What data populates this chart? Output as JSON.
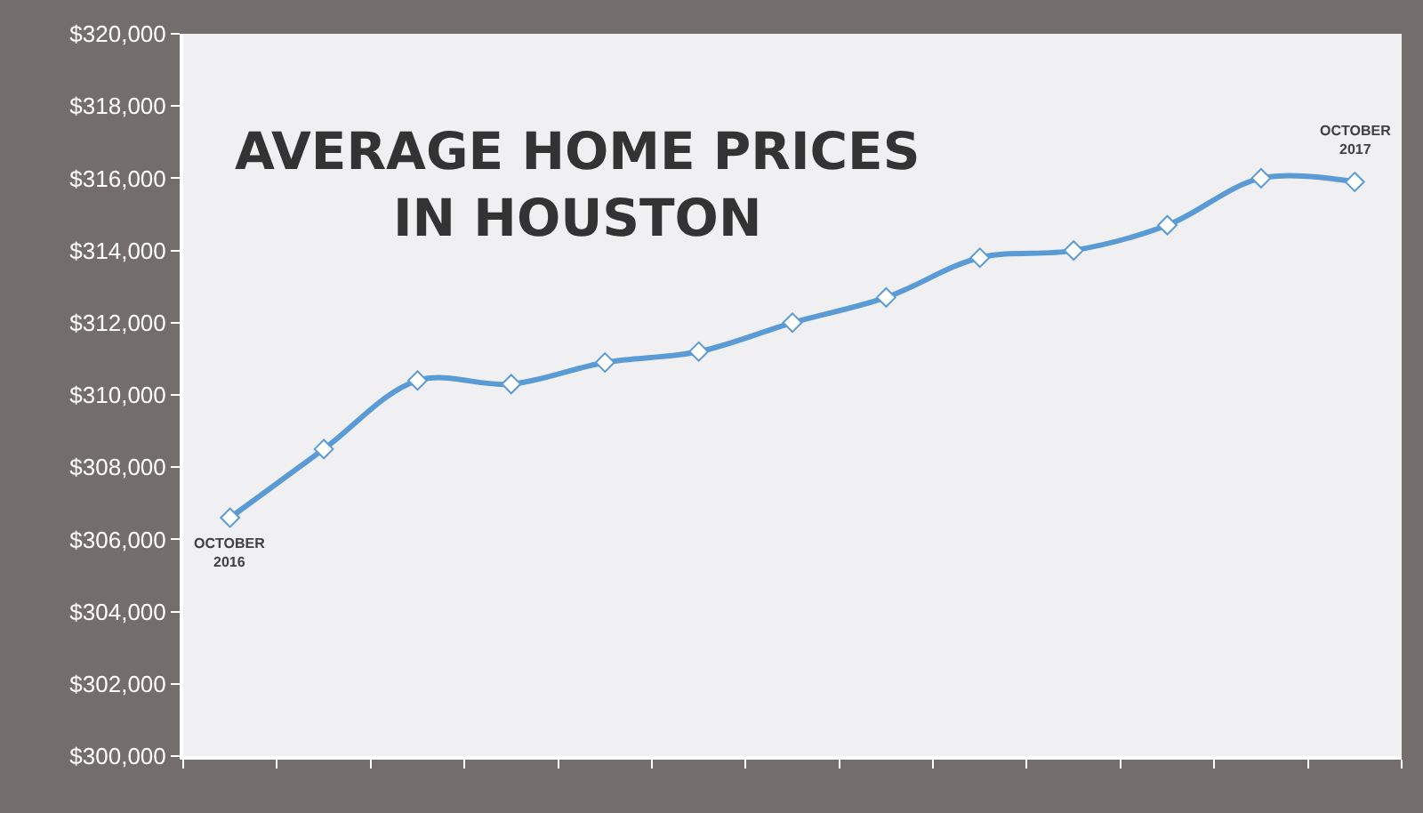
{
  "chart_data": {
    "type": "line",
    "title": "AVERAGE HOME PRICES\nIN HOUSTON",
    "categories": [
      null,
      null,
      null,
      null,
      null,
      null,
      null,
      null,
      null,
      null,
      null,
      null,
      null
    ],
    "series": [
      {
        "color": "#5b9bd5",
        "values": [
          306600,
          308500,
          310400,
          310300,
          310900,
          311200,
          312000,
          312700,
          313800,
          314000,
          314700,
          316000,
          315900
        ]
      }
    ],
    "ylim": [
      300000,
      320000
    ],
    "yticks": [
      {
        "value": 300000,
        "label": "$300,000"
      },
      {
        "value": 302000,
        "label": "$302,000"
      },
      {
        "value": 304000,
        "label": "$304,000"
      },
      {
        "value": 306000,
        "label": "$306,000"
      },
      {
        "value": 308000,
        "label": "$308,000"
      },
      {
        "value": 310000,
        "label": "$310,000"
      },
      {
        "value": 312000,
        "label": "$312,000"
      },
      {
        "value": 314000,
        "label": "$314,000"
      },
      {
        "value": 316000,
        "label": "$316,000"
      },
      {
        "value": 318000,
        "label": "$318,000"
      },
      {
        "value": 320000,
        "label": "$320,000"
      }
    ],
    "annotations": [
      {
        "text": "OCTOBER\n2016",
        "y": 306600
      },
      {
        "text": "OCTOBER\n2017",
        "y": 315900
      }
    ],
    "marker": "diamond",
    "line_style": "solid",
    "grid": false
  }
}
